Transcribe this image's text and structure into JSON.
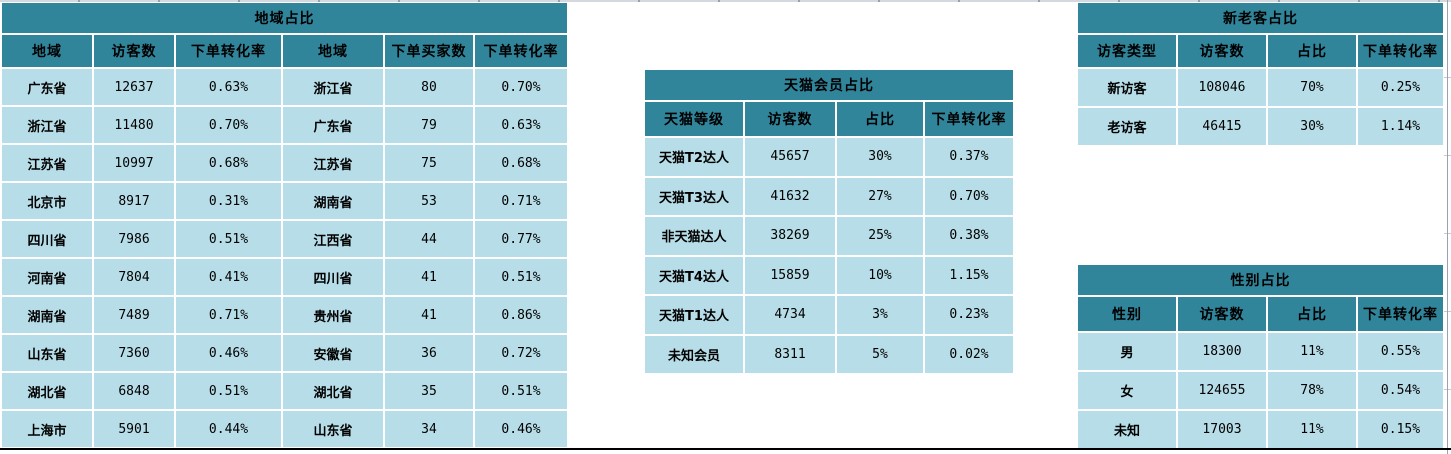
{
  "colors": {
    "header_bg": "#31859B",
    "cell_bg": "#B7DEE8",
    "text": "#000000",
    "grid_strip": "#d5d9df",
    "grid_tick": "#9aa3ad",
    "bottom_line": "#000000"
  },
  "tables": {
    "region": {
      "title": "地域占比",
      "headers": [
        "地域",
        "访客数",
        "下单转化率",
        "地域",
        "下单买家数",
        "下单转化率"
      ],
      "rows": [
        [
          "广东省",
          "12637",
          "0.63%",
          "浙江省",
          "80",
          "0.70%"
        ],
        [
          "浙江省",
          "11480",
          "0.70%",
          "广东省",
          "79",
          "0.63%"
        ],
        [
          "江苏省",
          "10997",
          "0.68%",
          "江苏省",
          "75",
          "0.68%"
        ],
        [
          "北京市",
          "8917",
          "0.31%",
          "湖南省",
          "53",
          "0.71%"
        ],
        [
          "四川省",
          "7986",
          "0.51%",
          "江西省",
          "44",
          "0.77%"
        ],
        [
          "河南省",
          "7804",
          "0.41%",
          "四川省",
          "41",
          "0.51%"
        ],
        [
          "湖南省",
          "7489",
          "0.71%",
          "贵州省",
          "41",
          "0.86%"
        ],
        [
          "山东省",
          "7360",
          "0.46%",
          "安徽省",
          "36",
          "0.72%"
        ],
        [
          "湖北省",
          "6848",
          "0.51%",
          "湖北省",
          "35",
          "0.51%"
        ],
        [
          "上海市",
          "5901",
          "0.44%",
          "山东省",
          "34",
          "0.46%"
        ]
      ]
    },
    "tmall": {
      "title": "天猫会员占比",
      "headers": [
        "天猫等级",
        "访客数",
        "占比",
        "下单转化率"
      ],
      "rows": [
        [
          "天猫T2达人",
          "45657",
          "30%",
          "0.37%"
        ],
        [
          "天猫T3达人",
          "41632",
          "27%",
          "0.70%"
        ],
        [
          "非天猫达人",
          "38269",
          "25%",
          "0.38%"
        ],
        [
          "天猫T4达人",
          "15859",
          "10%",
          "1.15%"
        ],
        [
          "天猫T1达人",
          "4734",
          "3%",
          "0.23%"
        ],
        [
          "未知会员",
          "8311",
          "5%",
          "0.02%"
        ]
      ]
    },
    "visitor_type": {
      "title": "新老客占比",
      "headers": [
        "访客类型",
        "访客数",
        "占比",
        "下单转化率"
      ],
      "rows": [
        [
          "新访客",
          "108046",
          "70%",
          "0.25%"
        ],
        [
          "老访客",
          "46415",
          "30%",
          "1.14%"
        ]
      ]
    },
    "gender": {
      "title": "性别占比",
      "headers": [
        "性别",
        "访客数",
        "占比",
        "下单转化率"
      ],
      "rows": [
        [
          "男",
          "18300",
          "11%",
          "0.55%"
        ],
        [
          "女",
          "124655",
          "78%",
          "0.54%"
        ],
        [
          "未知",
          "17003",
          "11%",
          "0.15%"
        ]
      ]
    }
  }
}
